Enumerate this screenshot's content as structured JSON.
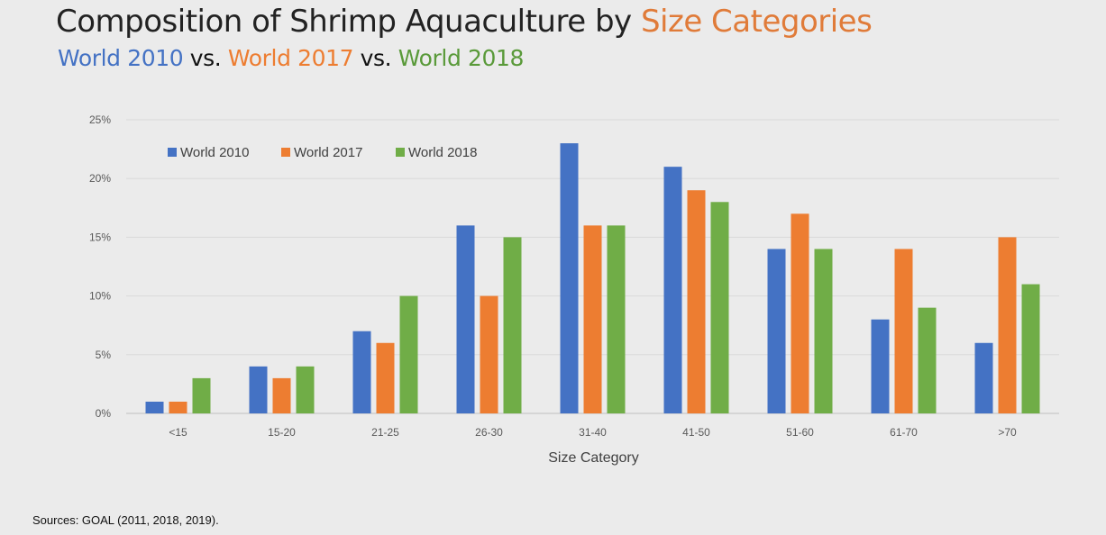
{
  "title": {
    "main_prefix": "Composition of Shrimp Aquaculture by ",
    "main_accent": "Size Categories",
    "subtitle_a": "World 2010",
    "subtitle_vs1": " vs. ",
    "subtitle_b": "World 2017",
    "subtitle_vs2": " vs. ",
    "subtitle_c": "World 2018"
  },
  "footer": {
    "sources": "Sources:  GOAL (2011, 2018, 2019)."
  },
  "colors": {
    "series_2010": "#4472c4",
    "series_2017": "#ed7d31",
    "series_2018": "#70ad47",
    "accent_title": "#e07b39"
  },
  "chart_data": {
    "type": "bar",
    "title": "Composition of Shrimp Aquaculture by Size Categories",
    "xlabel": "Size Category",
    "ylabel": "",
    "ylim": [
      0,
      25
    ],
    "yticks": [
      "0%",
      "5%",
      "10%",
      "15%",
      "20%",
      "25%"
    ],
    "ytick_values": [
      0,
      5,
      10,
      15,
      20,
      25
    ],
    "grid": true,
    "legend_position": "top-left",
    "categories": [
      "<15",
      "15-20",
      "21-25",
      "26-30",
      "31-40",
      "41-50",
      "51-60",
      "61-70",
      ">70"
    ],
    "series": [
      {
        "name": "World 2010",
        "color": "#4472c4",
        "values": [
          1,
          4,
          7,
          16,
          23,
          21,
          14,
          8,
          6
        ]
      },
      {
        "name": "World 2017",
        "color": "#ed7d31",
        "values": [
          1,
          3,
          6,
          10,
          16,
          19,
          17,
          14,
          15
        ]
      },
      {
        "name": "World 2018",
        "color": "#70ad47",
        "values": [
          3,
          4,
          10,
          15,
          16,
          18,
          14,
          9,
          11
        ]
      }
    ]
  }
}
